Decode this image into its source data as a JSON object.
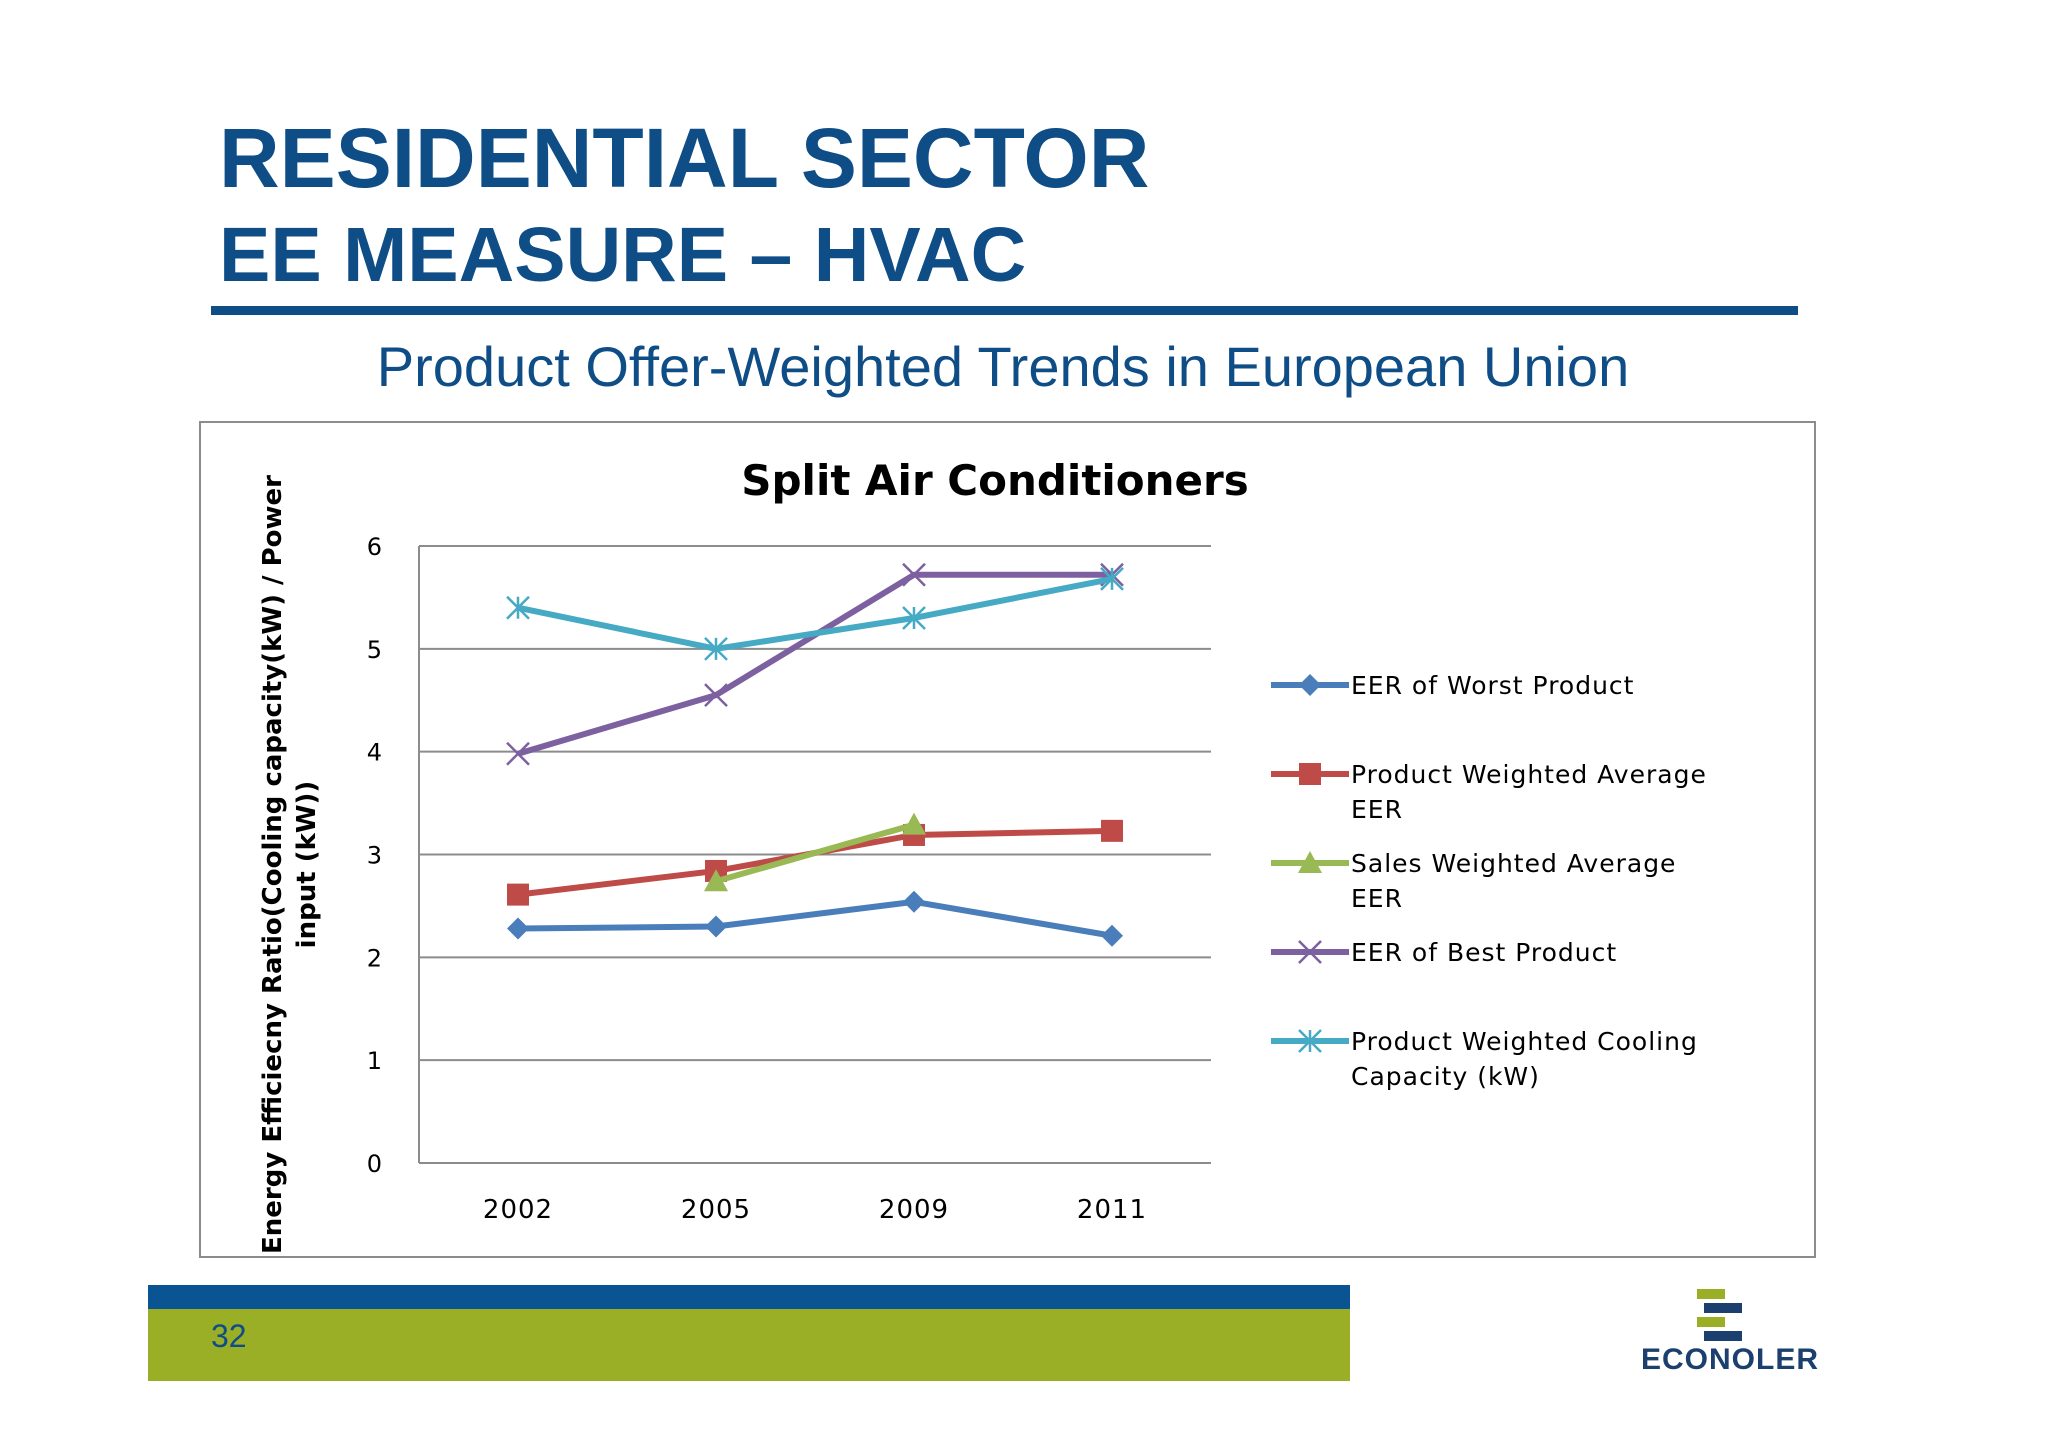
{
  "slide": {
    "title_line1": "RESIDENTIAL SECTOR",
    "title_line2": "EE MEASURE – HVAC",
    "subtitle": "Product Offer-Weighted Trends in European Union",
    "page_number": "32",
    "logo_text": "ECONOLER",
    "colors": {
      "title": "#0e4d86",
      "footer_blue": "#0a5494",
      "footer_green": "#9aaf25"
    }
  },
  "chart_data": {
    "type": "line",
    "title": "Split Air Conditioners",
    "xlabel": "",
    "ylabel": "Energy Efficiecny Ratio(Cooling capacity(kW) / Power input (kW))",
    "categories": [
      "2002",
      "2005",
      "2009",
      "2011"
    ],
    "ylim": [
      0,
      6
    ],
    "yticks": [
      "0",
      "1",
      "2",
      "3",
      "4",
      "5",
      "6"
    ],
    "grid": true,
    "legend_position": "right",
    "series": [
      {
        "name": "EER of Worst Product",
        "color": "#4a7ebb",
        "marker": "diamond",
        "values": [
          2.28,
          2.3,
          2.54,
          2.21
        ]
      },
      {
        "name": "Product Weighted Average EER",
        "color": "#be4b48",
        "marker": "square",
        "values": [
          2.61,
          2.84,
          3.19,
          3.23
        ]
      },
      {
        "name": "Sales Weighted Average EER",
        "color": "#98b954",
        "marker": "triangle",
        "values": [
          null,
          2.74,
          3.29,
          null
        ]
      },
      {
        "name": "EER of Best Product",
        "color": "#7d60a0",
        "marker": "x",
        "values": [
          3.98,
          4.55,
          5.72,
          5.72
        ]
      },
      {
        "name": "Product Weighted Cooling Capacity (kW)",
        "color": "#46aac5",
        "marker": "asterisk",
        "values": [
          5.4,
          5.0,
          5.3,
          5.68
        ]
      }
    ]
  }
}
